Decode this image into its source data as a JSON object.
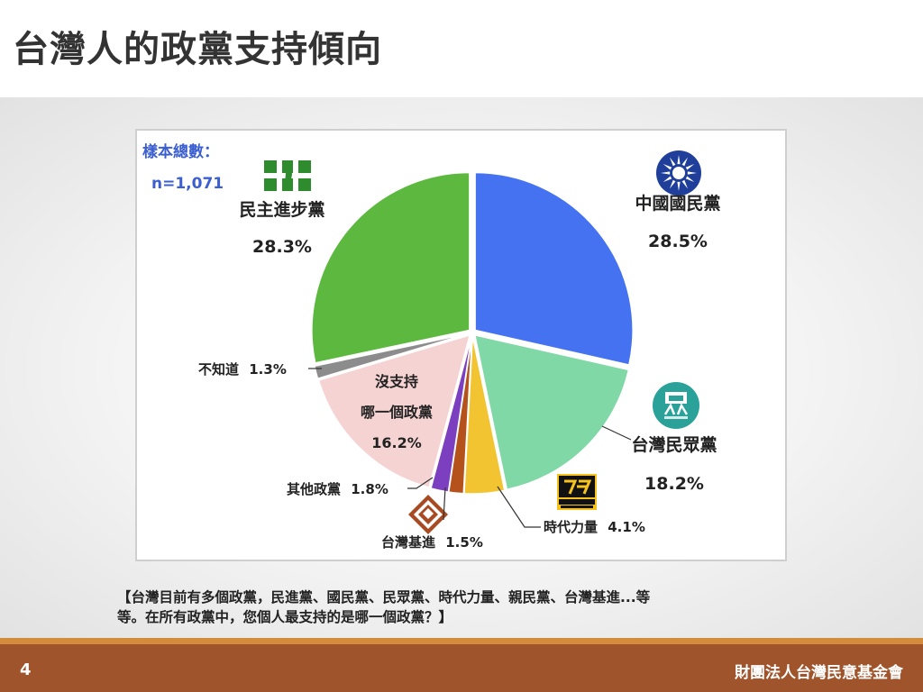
{
  "page": {
    "title": "台灣人的政黨支持傾向",
    "question_line1": "【台灣目前有多個政黨，民進黨、國民黨、民眾黨、時代力量、親民黨、台灣基進...等",
    "question_line2": "等。在所有政黨中，您個人最支持的是哪一個政黨？】",
    "page_number": "4",
    "organization": "財團法人台灣民意基金會"
  },
  "chart_data": {
    "type": "pie",
    "sample_label": "樣本總數：",
    "sample_size": "n=1,071",
    "start_angle_deg": 0,
    "direction": "clockwise",
    "slices": [
      {
        "label": "中國國民黨",
        "value": 28.5,
        "value_text": "28.5%",
        "color": "#4472f0"
      },
      {
        "label": "台灣民眾黨",
        "value": 18.2,
        "value_text": "18.2%",
        "color": "#7fd8a6"
      },
      {
        "label": "時代力量",
        "value": 4.1,
        "value_text": "4.1%",
        "color": "#f2c431"
      },
      {
        "label": "台灣基進",
        "value": 1.5,
        "value_text": "1.5%",
        "color": "#b5521c"
      },
      {
        "label": "其他政黨",
        "value": 1.8,
        "value_text": "1.8%",
        "color": "#7b3fbf"
      },
      {
        "label_line1": "沒支持",
        "label_line2": "哪一個政黨",
        "value": 16.2,
        "value_text": "16.2%",
        "color": "#f6d3d3"
      },
      {
        "label": "不知道",
        "value": 1.3,
        "value_text": "1.3%",
        "color": "#8c8c8c"
      },
      {
        "label": "民主進步黨",
        "value": 28.3,
        "value_text": "28.3%",
        "color": "#5cb83e"
      }
    ],
    "logos": {
      "kmt_color": "#1f3f9a",
      "tpp_color": "#2aa29a",
      "npp_color": "#f7c21c",
      "tsp_color": "#a84a22",
      "dpp_color": "#2e8b2e"
    }
  }
}
